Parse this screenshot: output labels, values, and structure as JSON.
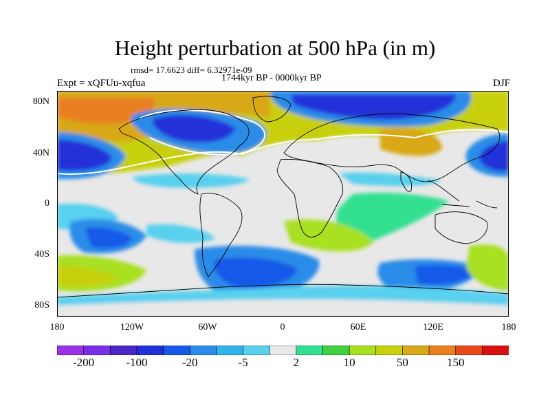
{
  "title": "Height perturbation at 500 hPa (in m)",
  "stats_line": "rmsd= 17.6623 diff= 6.32971e-09",
  "period_line": "1744kyr BP - 0000kyr BP",
  "experiment_label": "Expt = xQFUu-xqfua",
  "season_label": "DJF",
  "y_axis": {
    "ticks": [
      "80N",
      "40N",
      "0",
      "40S",
      "80S"
    ]
  },
  "x_axis": {
    "ticks": [
      "180",
      "120W",
      "60W",
      "0",
      "60E",
      "120E",
      "180"
    ]
  },
  "colorbar": {
    "colors": [
      "#9b30e8",
      "#7a2ee6",
      "#4a28c8",
      "#2030d8",
      "#1858e8",
      "#2a8ce8",
      "#30b4ea",
      "#58d0ee",
      "#e8e8e8",
      "#30e090",
      "#40d040",
      "#a8e020",
      "#c8d010",
      "#d8a818",
      "#e88020",
      "#e84818",
      "#d81010"
    ],
    "labels": [
      "-200",
      "-100",
      "-20",
      "-5",
      "2",
      "10",
      "50",
      "150"
    ]
  },
  "colors": {
    "strong_negative": "#2030d8",
    "negative": "#1858e8",
    "weak_negative": "#30b4ea",
    "neutral": "#e8e8e8",
    "weak_positive": "#30e090",
    "positive": "#a8e020",
    "strong_positive": "#d8a818",
    "very_strong_positive": "#e88020"
  }
}
